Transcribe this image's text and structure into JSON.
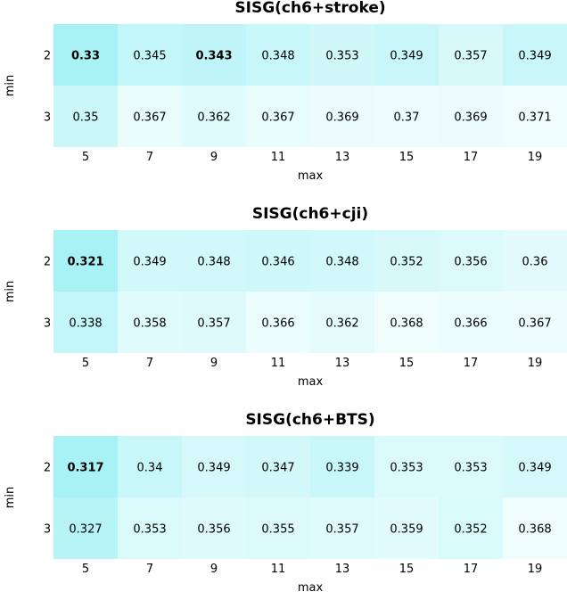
{
  "chart_data": [
    {
      "type": "heatmap",
      "title": "SISG(ch6+stroke)",
      "xlabel": "max",
      "ylabel": "min",
      "x": [
        5,
        7,
        9,
        11,
        13,
        15,
        17,
        19
      ],
      "y": [
        2,
        3
      ],
      "values": [
        [
          0.33,
          0.345,
          0.343,
          0.348,
          0.353,
          0.349,
          0.357,
          0.349
        ],
        [
          0.35,
          0.367,
          0.362,
          0.367,
          0.369,
          0.37,
          0.369,
          0.371
        ]
      ],
      "labels": [
        [
          "0.33",
          "0.345",
          "0.343",
          "0.348",
          "0.353",
          "0.349",
          "0.357",
          "0.349"
        ],
        [
          "0.35",
          "0.367",
          "0.362",
          "0.367",
          "0.369",
          "0.37",
          "0.369",
          "0.371"
        ]
      ],
      "bold": [
        [
          0,
          0
        ],
        [
          0,
          2
        ]
      ]
    },
    {
      "type": "heatmap",
      "title": "SISG(ch6+cji)",
      "xlabel": "max",
      "ylabel": "min",
      "x": [
        5,
        7,
        9,
        11,
        13,
        15,
        17,
        19
      ],
      "y": [
        2,
        3
      ],
      "values": [
        [
          0.321,
          0.349,
          0.348,
          0.346,
          0.348,
          0.352,
          0.356,
          0.36
        ],
        [
          0.338,
          0.358,
          0.357,
          0.366,
          0.362,
          0.368,
          0.366,
          0.367
        ]
      ],
      "labels": [
        [
          "0.321",
          "0.349",
          "0.348",
          "0.346",
          "0.348",
          "0.352",
          "0.356",
          "0.36"
        ],
        [
          "0.338",
          "0.358",
          "0.357",
          "0.366",
          "0.362",
          "0.368",
          "0.366",
          "0.367"
        ]
      ],
      "bold": [
        [
          0,
          0
        ]
      ]
    },
    {
      "type": "heatmap",
      "title": "SISG(ch6+BTS)",
      "xlabel": "max",
      "ylabel": "min",
      "x": [
        5,
        7,
        9,
        11,
        13,
        15,
        17,
        19
      ],
      "y": [
        2,
        3
      ],
      "values": [
        [
          0.317,
          0.34,
          0.349,
          0.347,
          0.339,
          0.353,
          0.353,
          0.349
        ],
        [
          0.327,
          0.353,
          0.356,
          0.355,
          0.357,
          0.359,
          0.352,
          0.368
        ]
      ],
      "labels": [
        [
          "0.317",
          "0.34",
          "0.349",
          "0.347",
          "0.339",
          "0.353",
          "0.353",
          "0.349"
        ],
        [
          "0.327",
          "0.353",
          "0.356",
          "0.355",
          "0.357",
          "0.359",
          "0.352",
          "0.368"
        ]
      ],
      "bold": [
        [
          0,
          0
        ]
      ]
    }
  ],
  "colors": {
    "dark": "#a8f2f5",
    "light": "#effdfd"
  }
}
